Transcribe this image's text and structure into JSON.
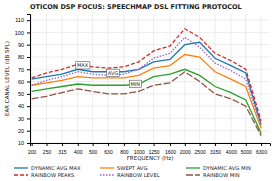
{
  "chart_data": {
    "type": "line",
    "title": "OTICON DSP FOCUS: SPEECHMAP DSL FITTING PROTOCOL",
    "xlabel": "FREQUENCY (Hz)",
    "ylabel": "EAR CANAL LEVEL (dB SPL)",
    "log": "x",
    "grid": true,
    "legend": "bottom",
    "x": [
      200,
      250,
      315,
      400,
      500,
      630,
      800,
      1000,
      1250,
      1600,
      2000,
      2500,
      3150,
      4000,
      5000,
      6300
    ],
    "xlim": [
      195,
      7200
    ],
    "xticks": [
      200,
      250,
      315,
      400,
      500,
      630,
      800,
      1000,
      1250,
      1600,
      2000,
      2500,
      3150,
      4000,
      5000,
      6300
    ],
    "ylim": [
      10,
      115
    ],
    "yticks": [
      10,
      20,
      30,
      40,
      50,
      60,
      70,
      80,
      90,
      100,
      110
    ],
    "series": [
      {
        "name": "DYNAMIC AVG MAX",
        "line_style": "solid",
        "values": [
          62,
          64,
          66,
          70,
          68,
          68,
          68,
          70,
          76,
          78,
          90,
          92,
          79,
          73,
          67,
          25
        ]
      },
      {
        "name": "SWEPT AVG",
        "line_style": "solid",
        "values": [
          57,
          59,
          61,
          64,
          63,
          63,
          63,
          65,
          71,
          73,
          82,
          80,
          68,
          62,
          56,
          22
        ]
      },
      {
        "name": "DYNAMIC AVG MIN",
        "line_style": "solid",
        "values": [
          52,
          54,
          56,
          58,
          57,
          57,
          57,
          58,
          64,
          66,
          70,
          65,
          56,
          51,
          45,
          18
        ]
      },
      {
        "name": "RAINBOW PEAKS",
        "line_style": "dashed",
        "values": [
          63,
          67,
          70,
          74,
          72,
          71,
          72,
          76,
          85,
          89,
          103,
          96,
          83,
          77,
          70,
          28
        ]
      },
      {
        "name": "RAINBOW LEVEL",
        "line_style": "dotted",
        "values": [
          57,
          61,
          64,
          68,
          66,
          65,
          66,
          70,
          79,
          83,
          96,
          88,
          75,
          69,
          62,
          24
        ]
      },
      {
        "name": "RAINBOW MIN",
        "line_style": "longdash",
        "values": [
          46,
          48,
          51,
          54,
          52,
          50,
          50,
          52,
          57,
          59,
          68,
          60,
          50,
          46,
          40,
          16
        ]
      }
    ],
    "annotations": [
      {
        "text": "MAX",
        "x": 430,
        "y": 73
      },
      {
        "text": "AVG",
        "x": 680,
        "y": 67
      },
      {
        "text": "MIN",
        "x": 950,
        "y": 58
      }
    ]
  }
}
